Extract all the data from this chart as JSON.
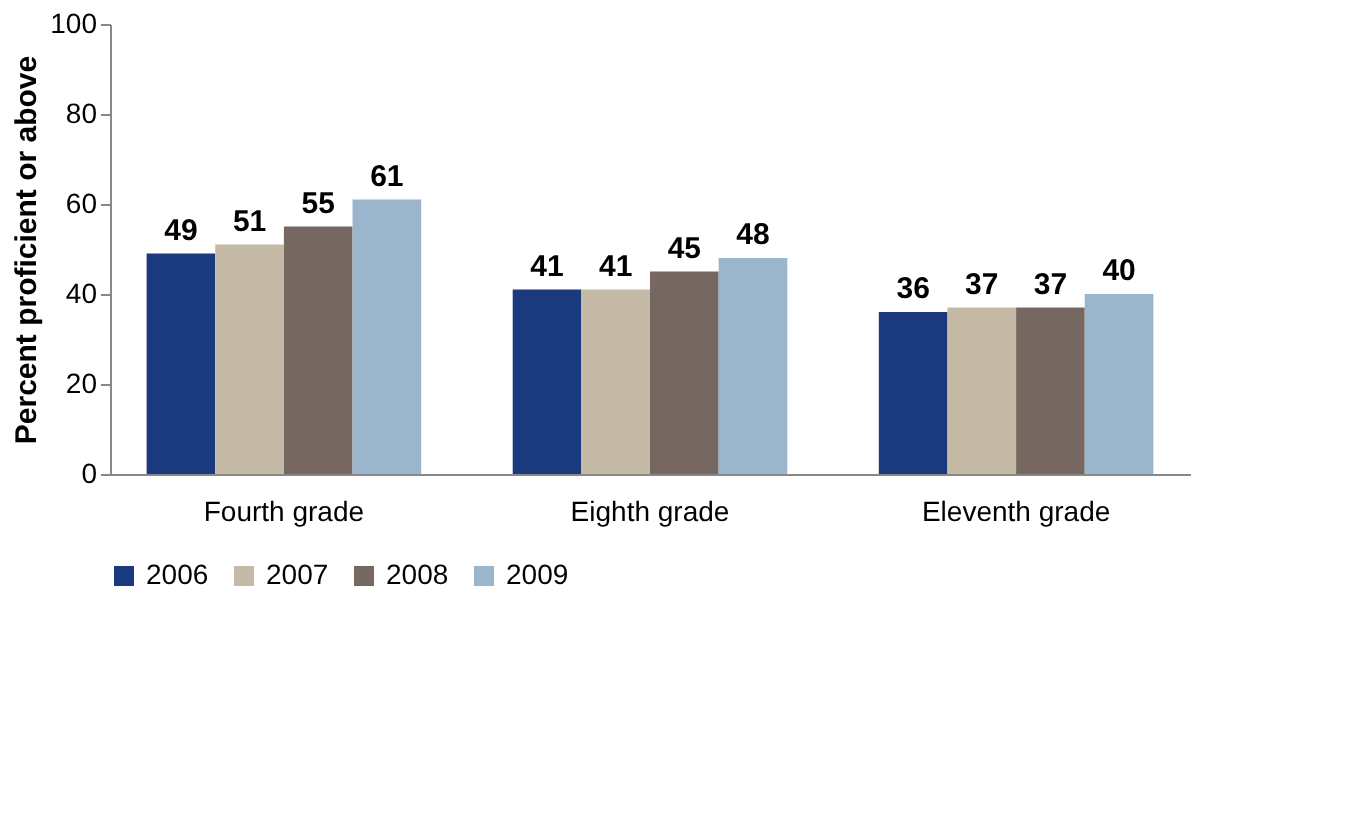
{
  "chart_data": {
    "type": "bar",
    "ylabel": "Percent proficient or above",
    "categories": [
      "Fourth grade",
      "Eighth grade",
      "Eleventh grade"
    ],
    "series": [
      {
        "name": "2006",
        "color": "#1b3a7e",
        "values": [
          49,
          41,
          36
        ]
      },
      {
        "name": "2007",
        "color": "#c5baa5",
        "values": [
          51,
          41,
          37
        ]
      },
      {
        "name": "2008",
        "color": "#766861",
        "values": [
          55,
          45,
          37
        ]
      },
      {
        "name": "2009",
        "color": "#9bb5cd",
        "values": [
          61,
          48,
          40
        ]
      }
    ],
    "ylim": [
      0,
      100
    ],
    "yticks": [
      0,
      20,
      40,
      60,
      80,
      100
    ],
    "data_labels": true,
    "grid": false,
    "legend": "bottom"
  }
}
